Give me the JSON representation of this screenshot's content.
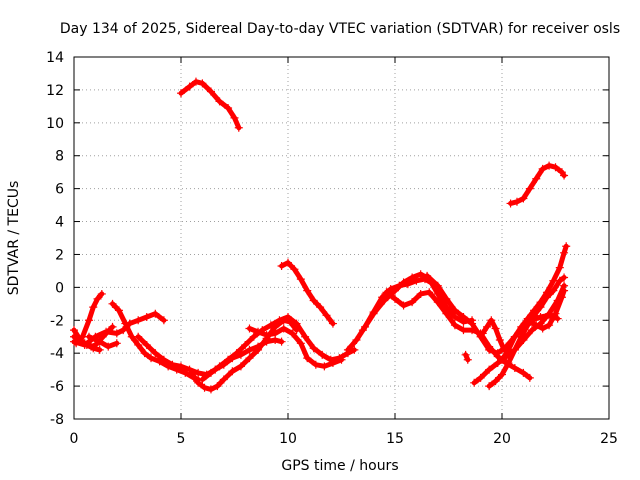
{
  "chart_data": {
    "type": "scatter",
    "title": "Day 134 of 2025, Sidereal Day-to-day VTEC variation (SDTVAR) for receiver osls",
    "xlabel": "GPS time / hours",
    "ylabel": "SDTVAR / TECUs",
    "xlim": [
      0,
      25
    ],
    "ylim": [
      -8,
      14
    ],
    "xticks": [
      0,
      5,
      10,
      15,
      20,
      25
    ],
    "yticks": [
      -8,
      -6,
      -4,
      -2,
      0,
      2,
      4,
      6,
      8,
      10,
      12,
      14
    ],
    "grid": true,
    "marker": "+",
    "color": "#ff0000",
    "series": [
      {
        "name": "arc1",
        "points": [
          [
            0,
            -2.6
          ],
          [
            0.3,
            -3.2
          ],
          [
            0.6,
            -3.5
          ],
          [
            0.9,
            -3.7
          ],
          [
            1.2,
            -3.8
          ]
        ]
      },
      {
        "name": "arc2",
        "points": [
          [
            0.1,
            -3.4
          ],
          [
            0.4,
            -3.0
          ],
          [
            0.7,
            -2.0
          ],
          [
            0.9,
            -1.2
          ],
          [
            1.1,
            -0.7
          ],
          [
            1.3,
            -0.4
          ]
        ]
      },
      {
        "name": "arc3",
        "points": [
          [
            0,
            -3.3
          ],
          [
            0.5,
            -3.5
          ],
          [
            1.0,
            -3.0
          ],
          [
            1.5,
            -2.7
          ],
          [
            2.0,
            -2.8
          ],
          [
            2.3,
            -2.6
          ],
          [
            2.6,
            -2.2
          ],
          [
            3.0,
            -2.0
          ],
          [
            3.4,
            -1.8
          ],
          [
            3.8,
            -1.6
          ],
          [
            4.2,
            -2.0
          ]
        ]
      },
      {
        "name": "arc4",
        "points": [
          [
            0,
            -3.0
          ],
          [
            0.5,
            -3.4
          ],
          [
            0.8,
            -3.6
          ],
          [
            1.0,
            -3.5
          ],
          [
            1.5,
            -2.8
          ],
          [
            1.8,
            -2.4
          ]
        ]
      },
      {
        "name": "arc5",
        "points": [
          [
            0.7,
            -3.0
          ],
          [
            1.2,
            -3.3
          ],
          [
            1.6,
            -3.6
          ],
          [
            2.0,
            -3.4
          ]
        ]
      },
      {
        "name": "arc6",
        "points": [
          [
            1.8,
            -1.0
          ],
          [
            2.1,
            -1.4
          ],
          [
            2.4,
            -2.2
          ],
          [
            2.7,
            -3.0
          ],
          [
            3.0,
            -3.5
          ],
          [
            3.3,
            -4.0
          ],
          [
            3.6,
            -4.3
          ],
          [
            4.0,
            -4.5
          ],
          [
            4.4,
            -4.8
          ],
          [
            4.8,
            -5.0
          ],
          [
            5.2,
            -5.2
          ],
          [
            5.6,
            -5.5
          ],
          [
            5.8,
            -5.6
          ]
        ]
      },
      {
        "name": "arc7",
        "points": [
          [
            3.0,
            -3.0
          ],
          [
            3.4,
            -3.5
          ],
          [
            3.8,
            -4.0
          ],
          [
            4.2,
            -4.4
          ],
          [
            4.6,
            -4.7
          ],
          [
            5.0,
            -4.8
          ],
          [
            5.4,
            -5.0
          ],
          [
            5.8,
            -5.2
          ],
          [
            6.2,
            -5.3
          ],
          [
            6.6,
            -5.0
          ],
          [
            7.0,
            -4.7
          ],
          [
            7.4,
            -4.3
          ],
          [
            7.8,
            -4.1
          ],
          [
            8.2,
            -3.8
          ],
          [
            8.6,
            -3.6
          ],
          [
            9.0,
            -3.3
          ],
          [
            9.4,
            -3.2
          ],
          [
            9.7,
            -3.3
          ]
        ]
      },
      {
        "name": "arc8",
        "points": [
          [
            5.5,
            -5.2
          ],
          [
            5.8,
            -5.8
          ],
          [
            6.1,
            -6.1
          ],
          [
            6.4,
            -6.2
          ],
          [
            6.7,
            -6.0
          ],
          [
            7.0,
            -5.6
          ],
          [
            7.4,
            -5.1
          ],
          [
            7.8,
            -4.8
          ],
          [
            8.2,
            -4.3
          ],
          [
            8.6,
            -3.8
          ],
          [
            9.0,
            -3.1
          ],
          [
            9.4,
            -2.4
          ],
          [
            9.8,
            -2.0
          ],
          [
            10.1,
            -2.1
          ],
          [
            10.4,
            -2.6
          ]
        ]
      },
      {
        "name": "arc9",
        "points": [
          [
            6.0,
            -5.6
          ],
          [
            6.4,
            -5.2
          ],
          [
            6.8,
            -4.8
          ],
          [
            7.2,
            -4.4
          ],
          [
            7.6,
            -4.0
          ],
          [
            8.0,
            -3.5
          ],
          [
            8.4,
            -3.0
          ],
          [
            8.8,
            -2.6
          ],
          [
            9.2,
            -2.3
          ],
          [
            9.6,
            -2.0
          ],
          [
            10.0,
            -1.8
          ],
          [
            10.4,
            -2.2
          ],
          [
            10.8,
            -3.0
          ],
          [
            11.2,
            -3.7
          ],
          [
            11.6,
            -4.1
          ],
          [
            12.0,
            -4.4
          ],
          [
            12.4,
            -4.3
          ],
          [
            12.8,
            -4.0
          ],
          [
            13.1,
            -3.8
          ]
        ]
      },
      {
        "name": "arc10",
        "points": [
          [
            8.2,
            -2.5
          ],
          [
            8.6,
            -2.7
          ],
          [
            9.0,
            -2.9
          ],
          [
            9.4,
            -2.8
          ],
          [
            9.8,
            -2.5
          ],
          [
            10.2,
            -2.8
          ],
          [
            10.6,
            -3.4
          ],
          [
            10.9,
            -4.3
          ],
          [
            11.3,
            -4.7
          ],
          [
            11.7,
            -4.8
          ],
          [
            12.1,
            -4.6
          ],
          [
            12.5,
            -4.4
          ]
        ]
      },
      {
        "name": "arc11",
        "points": [
          [
            5.0,
            11.8
          ],
          [
            5.4,
            12.2
          ],
          [
            5.7,
            12.5
          ],
          [
            6.0,
            12.4
          ],
          [
            6.4,
            11.9
          ],
          [
            6.8,
            11.3
          ],
          [
            7.2,
            10.9
          ],
          [
            7.5,
            10.3
          ],
          [
            7.7,
            9.7
          ]
        ]
      },
      {
        "name": "arc12",
        "points": [
          [
            9.7,
            1.3
          ],
          [
            10.0,
            1.5
          ],
          [
            10.3,
            1.1
          ],
          [
            10.6,
            0.5
          ],
          [
            10.9,
            -0.2
          ],
          [
            11.2,
            -0.8
          ],
          [
            11.5,
            -1.2
          ],
          [
            11.8,
            -1.7
          ],
          [
            12.1,
            -2.2
          ]
        ]
      },
      {
        "name": "arc13",
        "points": [
          [
            12.8,
            -3.8
          ],
          [
            13.2,
            -3.2
          ],
          [
            13.6,
            -2.4
          ],
          [
            14.0,
            -1.5
          ],
          [
            14.4,
            -0.6
          ],
          [
            14.8,
            -0.1
          ],
          [
            15.2,
            0.1
          ],
          [
            15.6,
            0.2
          ],
          [
            16.0,
            0.4
          ],
          [
            16.4,
            0.5
          ],
          [
            16.8,
            0.2
          ]
        ]
      },
      {
        "name": "arc14",
        "points": [
          [
            13.5,
            -2.6
          ],
          [
            14.0,
            -1.6
          ],
          [
            14.5,
            -0.8
          ],
          [
            15.0,
            -0.2
          ],
          [
            15.4,
            0.3
          ],
          [
            15.8,
            0.6
          ],
          [
            16.2,
            0.8
          ],
          [
            16.6,
            0.5
          ],
          [
            17.0,
            -0.4
          ],
          [
            17.4,
            -1.2
          ],
          [
            17.8,
            -1.8
          ],
          [
            18.2,
            -2.1
          ],
          [
            18.6,
            -2.0
          ]
        ]
      },
      {
        "name": "arc15",
        "points": [
          [
            14.6,
            -0.3
          ],
          [
            15.0,
            -0.7
          ],
          [
            15.4,
            -1.1
          ],
          [
            15.8,
            -0.9
          ],
          [
            16.2,
            -0.4
          ],
          [
            16.6,
            -0.3
          ],
          [
            17.0,
            -0.9
          ],
          [
            17.4,
            -1.6
          ],
          [
            17.8,
            -2.3
          ],
          [
            18.2,
            -2.6
          ],
          [
            18.6,
            -2.6
          ],
          [
            19.0,
            -2.8
          ],
          [
            19.4,
            -3.6
          ],
          [
            19.8,
            -4.2
          ],
          [
            20.2,
            -4.6
          ],
          [
            20.6,
            -4.9
          ],
          [
            21.0,
            -5.2
          ],
          [
            21.3,
            -5.5
          ]
        ]
      },
      {
        "name": "arc16",
        "points": [
          [
            16.5,
            0.7
          ],
          [
            17.0,
            0.1
          ],
          [
            17.4,
            -0.7
          ],
          [
            17.8,
            -1.4
          ],
          [
            18.2,
            -1.8
          ],
          [
            18.6,
            -2.2
          ],
          [
            19.0,
            -3.0
          ],
          [
            19.4,
            -3.8
          ],
          [
            19.8,
            -4.0
          ],
          [
            20.2,
            -3.6
          ],
          [
            20.6,
            -3.0
          ],
          [
            21.0,
            -2.4
          ],
          [
            21.4,
            -2.0
          ],
          [
            21.8,
            -1.8
          ],
          [
            22.2,
            -1.7
          ],
          [
            22.6,
            -1.9
          ]
        ]
      },
      {
        "name": "arc17",
        "points": [
          [
            18.3,
            -4.1
          ],
          [
            18.4,
            -4.4
          ]
        ]
      },
      {
        "name": "arc18",
        "points": [
          [
            19.1,
            -2.8
          ],
          [
            19.3,
            -2.4
          ],
          [
            19.5,
            -2.0
          ],
          [
            19.7,
            -2.5
          ],
          [
            19.9,
            -3.2
          ],
          [
            20.1,
            -3.8
          ]
        ]
      },
      {
        "name": "arc19",
        "points": [
          [
            18.7,
            -5.8
          ],
          [
            19.0,
            -5.5
          ],
          [
            19.4,
            -5.0
          ],
          [
            19.8,
            -4.6
          ],
          [
            20.2,
            -4.2
          ],
          [
            20.6,
            -3.8
          ],
          [
            21.0,
            -3.2
          ],
          [
            21.4,
            -2.6
          ],
          [
            21.8,
            -2.2
          ],
          [
            22.2,
            -1.6
          ],
          [
            22.6,
            -0.8
          ],
          [
            22.9,
            0.1
          ]
        ]
      },
      {
        "name": "arc20",
        "points": [
          [
            19.4,
            -6.0
          ],
          [
            19.7,
            -5.7
          ],
          [
            20.0,
            -5.3
          ],
          [
            20.3,
            -4.6
          ],
          [
            20.6,
            -3.8
          ],
          [
            20.9,
            -3.0
          ],
          [
            21.2,
            -2.3
          ],
          [
            21.5,
            -1.7
          ],
          [
            21.8,
            -1.2
          ],
          [
            22.1,
            -0.6
          ],
          [
            22.4,
            -0.2
          ],
          [
            22.7,
            0.4
          ],
          [
            22.9,
            0.6
          ]
        ]
      },
      {
        "name": "arc21",
        "points": [
          [
            20.0,
            -4.4
          ],
          [
            20.3,
            -3.8
          ],
          [
            20.6,
            -3.0
          ],
          [
            20.9,
            -2.4
          ],
          [
            21.2,
            -1.9
          ],
          [
            21.5,
            -1.4
          ],
          [
            21.8,
            -0.9
          ],
          [
            22.1,
            -0.3
          ],
          [
            22.4,
            0.4
          ],
          [
            22.7,
            1.2
          ],
          [
            22.9,
            2.1
          ],
          [
            23.0,
            2.5
          ]
        ]
      },
      {
        "name": "arc22",
        "points": [
          [
            20.4,
            5.1
          ],
          [
            20.7,
            5.2
          ],
          [
            21.0,
            5.4
          ],
          [
            21.3,
            6.0
          ],
          [
            21.6,
            6.6
          ],
          [
            21.9,
            7.2
          ],
          [
            22.2,
            7.4
          ],
          [
            22.5,
            7.3
          ],
          [
            22.8,
            7.0
          ],
          [
            22.9,
            6.8
          ]
        ]
      },
      {
        "name": "arc23",
        "points": [
          [
            21.3,
            -2.1
          ],
          [
            21.6,
            -2.3
          ],
          [
            21.9,
            -2.5
          ],
          [
            22.2,
            -2.3
          ],
          [
            22.5,
            -1.6
          ],
          [
            22.8,
            -0.6
          ],
          [
            22.9,
            -0.2
          ]
        ]
      }
    ]
  }
}
